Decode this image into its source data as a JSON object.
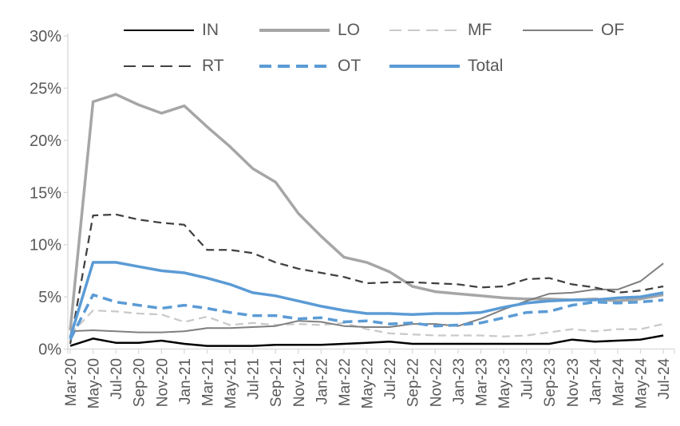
{
  "chart_data": {
    "type": "line",
    "title": "",
    "xlabel": "",
    "ylabel": "",
    "grid": "off",
    "legend_position": "top-two-rows",
    "axis_label_color": "#595959",
    "axis_line_color": "#D9D9D9",
    "y_axis": {
      "min": 0,
      "max": 30,
      "step": 5,
      "unit": "%",
      "tick_labels": [
        "0%",
        "5%",
        "10%",
        "15%",
        "20%",
        "25%",
        "30%"
      ]
    },
    "categories": [
      "Mar-20",
      "May-20",
      "Jul-20",
      "Sep-20",
      "Nov-20",
      "Jan-21",
      "Mar-21",
      "May-21",
      "Jul-21",
      "Sep-21",
      "Nov-21",
      "Jan-22",
      "Mar-22",
      "May-22",
      "Jul-22",
      "Sep-22",
      "Nov-22",
      "Jan-23",
      "Mar-23",
      "May-23",
      "Jul-23",
      "Sep-23",
      "Nov-23",
      "Jan-24",
      "Mar-24",
      "May-24",
      "Jul-24"
    ],
    "series": [
      {
        "name": "IN",
        "color": "#000000",
        "style": "solid",
        "width": 2.5,
        "values": [
          0.3,
          1.0,
          0.6,
          0.6,
          0.8,
          0.5,
          0.3,
          0.3,
          0.3,
          0.4,
          0.4,
          0.4,
          0.5,
          0.6,
          0.7,
          0.5,
          0.5,
          0.5,
          0.5,
          0.5,
          0.5,
          0.5,
          0.9,
          0.7,
          0.8,
          0.9,
          1.3
        ]
      },
      {
        "name": "LO",
        "color": "#A6A6A6",
        "style": "solid",
        "width": 3.5,
        "values": [
          1.8,
          23.7,
          24.4,
          23.4,
          22.6,
          23.3,
          21.3,
          19.4,
          17.3,
          16.0,
          13.0,
          10.8,
          8.8,
          8.3,
          7.4,
          6.0,
          5.5,
          5.3,
          5.1,
          4.9,
          4.8,
          4.8,
          4.7,
          4.8,
          4.6,
          4.8,
          5.2
        ]
      },
      {
        "name": "MF",
        "color": "#C9C9C9",
        "style": "dashed",
        "width": 2.25,
        "values": [
          1.4,
          3.7,
          3.6,
          3.4,
          3.3,
          2.6,
          3.1,
          2.3,
          2.5,
          2.3,
          2.4,
          2.3,
          2.5,
          1.9,
          1.5,
          1.4,
          1.3,
          1.3,
          1.3,
          1.2,
          1.3,
          1.6,
          1.9,
          1.7,
          1.9,
          1.9,
          2.4
        ]
      },
      {
        "name": "OF",
        "color": "#7F7F7F",
        "style": "solid",
        "width": 2,
        "values": [
          1.7,
          1.8,
          1.7,
          1.6,
          1.6,
          1.7,
          2.0,
          2.0,
          2.1,
          2.2,
          2.7,
          2.6,
          2.2,
          2.1,
          2.1,
          2.4,
          2.4,
          2.2,
          2.9,
          3.8,
          4.6,
          5.3,
          5.4,
          5.7,
          5.7,
          6.5,
          8.2
        ]
      },
      {
        "name": "RT",
        "color": "#404040",
        "style": "dashed",
        "width": 2.25,
        "values": [
          0.5,
          12.8,
          12.9,
          12.4,
          12.1,
          11.9,
          9.5,
          9.5,
          9.2,
          8.3,
          7.7,
          7.3,
          6.9,
          6.3,
          6.4,
          6.4,
          6.3,
          6.2,
          5.9,
          6.0,
          6.7,
          6.8,
          6.2,
          5.9,
          5.4,
          5.6,
          6.0
        ]
      },
      {
        "name": "OT",
        "color": "#5B9BD5",
        "style": "dashed",
        "width": 3.5,
        "values": [
          0.9,
          5.2,
          4.5,
          4.2,
          3.9,
          4.2,
          3.9,
          3.5,
          3.2,
          3.2,
          2.9,
          3.0,
          2.6,
          2.7,
          2.4,
          2.5,
          2.2,
          2.3,
          2.5,
          3.0,
          3.5,
          3.6,
          4.2,
          4.5,
          4.4,
          4.5,
          4.7
        ]
      },
      {
        "name": "Total",
        "color": "#5B9BD5",
        "style": "solid",
        "width": 3.5,
        "values": [
          1.1,
          8.3,
          8.3,
          7.9,
          7.5,
          7.3,
          6.8,
          6.2,
          5.4,
          5.1,
          4.6,
          4.1,
          3.7,
          3.4,
          3.4,
          3.3,
          3.4,
          3.4,
          3.5,
          4.0,
          4.4,
          4.6,
          4.7,
          4.7,
          4.9,
          5.0,
          5.4
        ]
      }
    ],
    "legend_rows": [
      [
        0,
        1,
        2,
        3
      ],
      [
        4,
        5,
        6
      ]
    ]
  }
}
